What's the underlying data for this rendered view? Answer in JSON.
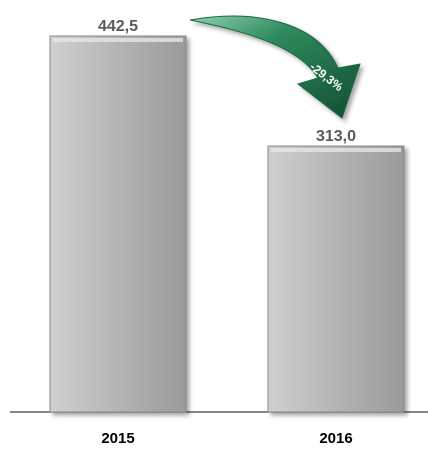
{
  "chart_data": {
    "type": "bar",
    "categories": [
      "2015",
      "2016"
    ],
    "values": [
      442.5,
      313.0
    ],
    "value_labels": [
      "442,5",
      "313,0"
    ],
    "change_label": "-29,3%",
    "title": "",
    "xlabel": "",
    "ylabel": "",
    "ylim": [
      0,
      442.5
    ],
    "grid": false,
    "legend": "none",
    "colors": {
      "bar_fill": "#b0b0b0",
      "bar_edge": "#8a8a8a",
      "label_text": "#595959",
      "category_text": "#000000",
      "arrow_fill": "#1f6b45",
      "arrow_text": "#ffffff",
      "axis_line": "#404040"
    }
  }
}
